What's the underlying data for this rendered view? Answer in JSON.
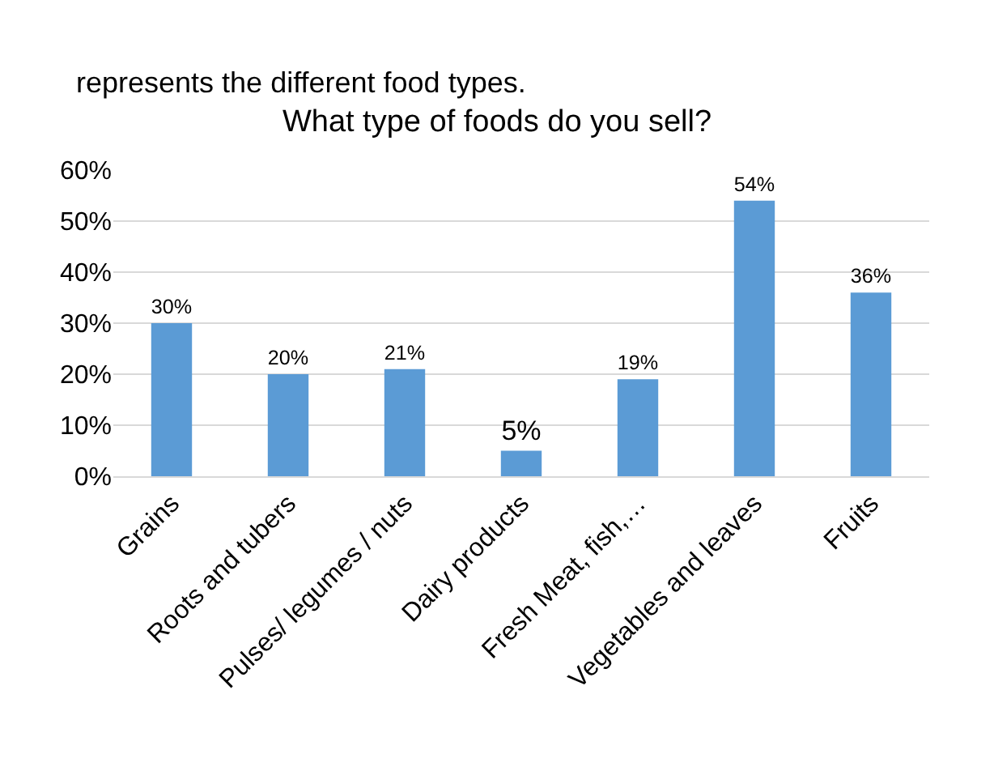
{
  "chart_data": {
    "type": "bar",
    "title": "What type of foods do you sell?",
    "annotations": [
      "represents the different food types."
    ],
    "categories": [
      "Grains",
      "Roots and tubers",
      "Pulses/ legumes / nuts",
      "Dairy products",
      "Fresh Meat, fish,…",
      "Vegetables and leaves",
      "Fruits"
    ],
    "values": [
      30,
      20,
      21,
      5,
      19,
      54,
      36
    ],
    "value_labels": [
      "30%",
      "20%",
      "21%",
      "5%",
      "19%",
      "54%",
      "36%"
    ],
    "color": "#5b9bd5",
    "ylim": [
      0,
      60
    ],
    "yticks": [
      {
        "value": 0,
        "label": "0%"
      },
      {
        "value": 10,
        "label": "10%"
      },
      {
        "value": 20,
        "label": "20%"
      },
      {
        "value": 30,
        "label": "30%"
      },
      {
        "value": 40,
        "label": "40%"
      },
      {
        "value": 50,
        "label": "50%"
      },
      {
        "value": 60,
        "label": "60%"
      }
    ],
    "grid": "y",
    "legend": false
  }
}
